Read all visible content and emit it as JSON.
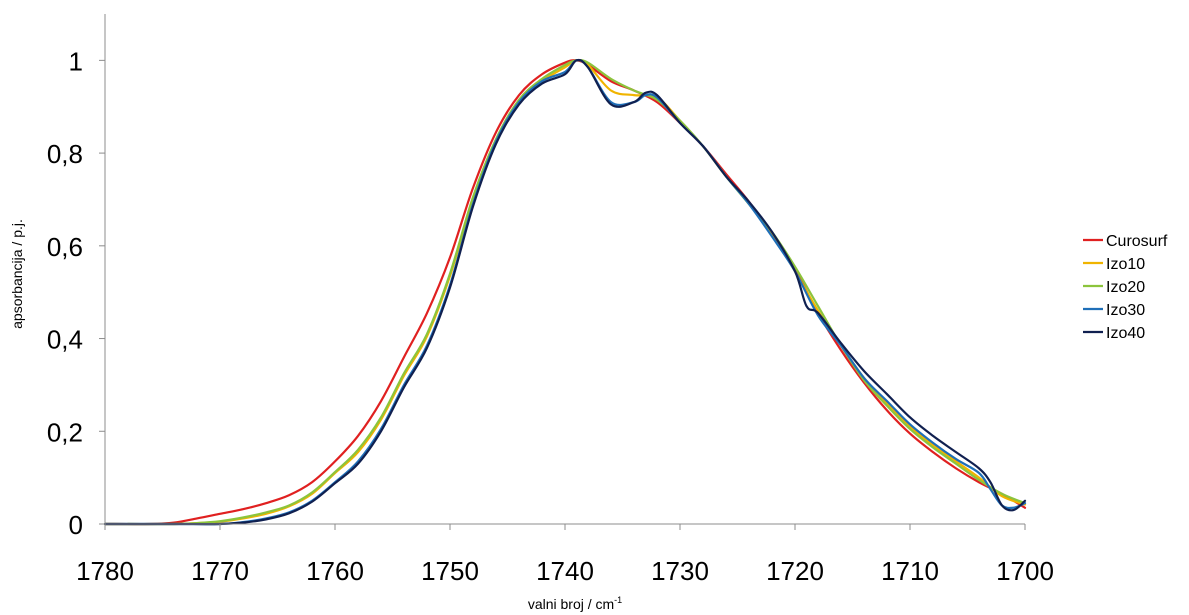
{
  "chart_data": {
    "type": "line",
    "title": "",
    "xlabel": "valni broj / cm",
    "xlabel_superscript": "-1",
    "ylabel": "apsorbancija / p.j.",
    "xlim": [
      1780,
      1700
    ],
    "x_reversed": true,
    "ylim": [
      0,
      1.1
    ],
    "x_ticks": [
      1780,
      1770,
      1760,
      1750,
      1740,
      1730,
      1720,
      1710,
      1700
    ],
    "x_tick_labels": [
      "1780",
      "1770",
      "1760",
      "1750",
      "1740",
      "1730",
      "1720",
      "1710",
      "1700"
    ],
    "y_ticks": [
      0,
      0.2,
      0.4,
      0.6,
      0.8,
      1.0
    ],
    "y_tick_labels": [
      "0",
      "0,2",
      "0,4",
      "0,6",
      "0,8",
      "1"
    ],
    "grid": false,
    "legend_position": "right",
    "series": [
      {
        "name": "Curosurf",
        "color": "#e02020",
        "points": [
          [
            1780,
            0
          ],
          [
            1776,
            0
          ],
          [
            1774,
            0.003
          ],
          [
            1772,
            0.012
          ],
          [
            1770,
            0.022
          ],
          [
            1768,
            0.032
          ],
          [
            1766,
            0.045
          ],
          [
            1764,
            0.062
          ],
          [
            1762,
            0.09
          ],
          [
            1760,
            0.135
          ],
          [
            1758,
            0.19
          ],
          [
            1756,
            0.265
          ],
          [
            1754,
            0.36
          ],
          [
            1752,
            0.455
          ],
          [
            1750,
            0.575
          ],
          [
            1748,
            0.725
          ],
          [
            1746,
            0.845
          ],
          [
            1744,
            0.925
          ],
          [
            1742,
            0.97
          ],
          [
            1740,
            0.995
          ],
          [
            1739,
            1.0
          ],
          [
            1738,
            0.99
          ],
          [
            1736,
            0.955
          ],
          [
            1734,
            0.935
          ],
          [
            1732,
            0.91
          ],
          [
            1730,
            0.865
          ],
          [
            1728,
            0.815
          ],
          [
            1726,
            0.755
          ],
          [
            1724,
            0.695
          ],
          [
            1722,
            0.625
          ],
          [
            1720,
            0.55
          ],
          [
            1718,
            0.455
          ],
          [
            1716,
            0.375
          ],
          [
            1714,
            0.305
          ],
          [
            1712,
            0.245
          ],
          [
            1710,
            0.195
          ],
          [
            1708,
            0.155
          ],
          [
            1706,
            0.12
          ],
          [
            1704,
            0.09
          ],
          [
            1702,
            0.065
          ],
          [
            1700,
            0.035
          ]
        ]
      },
      {
        "name": "Izo10",
        "color": "#f0b400",
        "points": [
          [
            1780,
            0
          ],
          [
            1774,
            0
          ],
          [
            1772,
            0.002
          ],
          [
            1770,
            0.005
          ],
          [
            1768,
            0.012
          ],
          [
            1766,
            0.022
          ],
          [
            1764,
            0.038
          ],
          [
            1762,
            0.065
          ],
          [
            1760,
            0.11
          ],
          [
            1758,
            0.155
          ],
          [
            1756,
            0.225
          ],
          [
            1754,
            0.32
          ],
          [
            1752,
            0.405
          ],
          [
            1750,
            0.535
          ],
          [
            1748,
            0.7
          ],
          [
            1746,
            0.825
          ],
          [
            1744,
            0.91
          ],
          [
            1742,
            0.955
          ],
          [
            1740,
            0.985
          ],
          [
            1739,
            1.0
          ],
          [
            1738,
            0.99
          ],
          [
            1736,
            0.935
          ],
          [
            1734,
            0.925
          ],
          [
            1732,
            0.92
          ],
          [
            1730,
            0.87
          ],
          [
            1728,
            0.815
          ],
          [
            1726,
            0.75
          ],
          [
            1724,
            0.69
          ],
          [
            1722,
            0.625
          ],
          [
            1720,
            0.545
          ],
          [
            1718,
            0.46
          ],
          [
            1716,
            0.385
          ],
          [
            1714,
            0.315
          ],
          [
            1712,
            0.26
          ],
          [
            1710,
            0.21
          ],
          [
            1708,
            0.17
          ],
          [
            1706,
            0.135
          ],
          [
            1704,
            0.1
          ],
          [
            1702,
            0.06
          ],
          [
            1700,
            0.042
          ]
        ]
      },
      {
        "name": "Izo20",
        "color": "#8cc43c",
        "points": [
          [
            1780,
            0
          ],
          [
            1774,
            0
          ],
          [
            1772,
            0.002
          ],
          [
            1770,
            0.006
          ],
          [
            1768,
            0.014
          ],
          [
            1766,
            0.025
          ],
          [
            1764,
            0.04
          ],
          [
            1762,
            0.068
          ],
          [
            1760,
            0.112
          ],
          [
            1758,
            0.16
          ],
          [
            1756,
            0.23
          ],
          [
            1754,
            0.325
          ],
          [
            1752,
            0.41
          ],
          [
            1750,
            0.54
          ],
          [
            1748,
            0.705
          ],
          [
            1746,
            0.83
          ],
          [
            1744,
            0.915
          ],
          [
            1742,
            0.96
          ],
          [
            1740,
            0.99
          ],
          [
            1739,
            1.0
          ],
          [
            1738,
            0.995
          ],
          [
            1736,
            0.96
          ],
          [
            1734,
            0.935
          ],
          [
            1732,
            0.915
          ],
          [
            1730,
            0.87
          ],
          [
            1728,
            0.815
          ],
          [
            1726,
            0.75
          ],
          [
            1724,
            0.69
          ],
          [
            1722,
            0.63
          ],
          [
            1720,
            0.555
          ],
          [
            1718,
            0.47
          ],
          [
            1716,
            0.385
          ],
          [
            1714,
            0.31
          ],
          [
            1712,
            0.255
          ],
          [
            1710,
            0.205
          ],
          [
            1708,
            0.165
          ],
          [
            1706,
            0.13
          ],
          [
            1704,
            0.095
          ],
          [
            1702,
            0.065
          ],
          [
            1700,
            0.045
          ]
        ]
      },
      {
        "name": "Izo30",
        "color": "#1f6fb8",
        "points": [
          [
            1780,
            0
          ],
          [
            1774,
            0
          ],
          [
            1770,
            0.0
          ],
          [
            1768,
            0.004
          ],
          [
            1766,
            0.012
          ],
          [
            1764,
            0.025
          ],
          [
            1762,
            0.05
          ],
          [
            1760,
            0.09
          ],
          [
            1758,
            0.135
          ],
          [
            1756,
            0.205
          ],
          [
            1754,
            0.3
          ],
          [
            1752,
            0.385
          ],
          [
            1750,
            0.515
          ],
          [
            1748,
            0.69
          ],
          [
            1746,
            0.825
          ],
          [
            1744,
            0.91
          ],
          [
            1742,
            0.955
          ],
          [
            1740,
            0.975
          ],
          [
            1739,
            1.0
          ],
          [
            1738,
            0.985
          ],
          [
            1736,
            0.91
          ],
          [
            1734,
            0.91
          ],
          [
            1733,
            0.925
          ],
          [
            1732,
            0.92
          ],
          [
            1730,
            0.865
          ],
          [
            1728,
            0.815
          ],
          [
            1726,
            0.75
          ],
          [
            1724,
            0.69
          ],
          [
            1722,
            0.62
          ],
          [
            1720,
            0.545
          ],
          [
            1718,
            0.45
          ],
          [
            1716,
            0.385
          ],
          [
            1714,
            0.315
          ],
          [
            1712,
            0.265
          ],
          [
            1710,
            0.215
          ],
          [
            1708,
            0.175
          ],
          [
            1706,
            0.14
          ],
          [
            1704,
            0.11
          ],
          [
            1703,
            0.075
          ],
          [
            1702,
            0.04
          ],
          [
            1701,
            0.035
          ],
          [
            1700,
            0.045
          ]
        ]
      },
      {
        "name": "Izo40",
        "color": "#102050",
        "points": [
          [
            1780,
            0
          ],
          [
            1774,
            0
          ],
          [
            1770,
            0.0
          ],
          [
            1768,
            0.003
          ],
          [
            1766,
            0.01
          ],
          [
            1764,
            0.023
          ],
          [
            1762,
            0.048
          ],
          [
            1760,
            0.088
          ],
          [
            1758,
            0.13
          ],
          [
            1756,
            0.2
          ],
          [
            1754,
            0.295
          ],
          [
            1752,
            0.38
          ],
          [
            1750,
            0.51
          ],
          [
            1748,
            0.685
          ],
          [
            1746,
            0.82
          ],
          [
            1744,
            0.905
          ],
          [
            1742,
            0.95
          ],
          [
            1740,
            0.97
          ],
          [
            1739,
            1.0
          ],
          [
            1738,
            0.985
          ],
          [
            1736,
            0.905
          ],
          [
            1734,
            0.91
          ],
          [
            1733,
            0.93
          ],
          [
            1732,
            0.925
          ],
          [
            1730,
            0.865
          ],
          [
            1728,
            0.815
          ],
          [
            1726,
            0.75
          ],
          [
            1724,
            0.695
          ],
          [
            1722,
            0.63
          ],
          [
            1720,
            0.545
          ],
          [
            1719,
            0.47
          ],
          [
            1718,
            0.455
          ],
          [
            1716,
            0.39
          ],
          [
            1714,
            0.33
          ],
          [
            1712,
            0.28
          ],
          [
            1710,
            0.23
          ],
          [
            1708,
            0.19
          ],
          [
            1706,
            0.155
          ],
          [
            1704,
            0.12
          ],
          [
            1703,
            0.09
          ],
          [
            1702,
            0.04
          ],
          [
            1701,
            0.03
          ],
          [
            1700,
            0.05
          ]
        ]
      }
    ]
  }
}
